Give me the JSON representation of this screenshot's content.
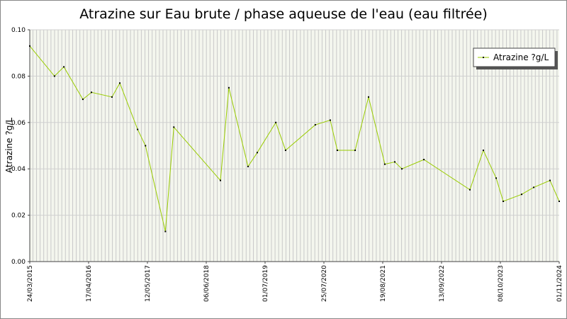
{
  "chart_data": {
    "type": "line",
    "title": "Atrazine sur Eau brute / phase aqueuse de l'eau (eau filtrée)",
    "y_label": "Atrazine ?g/L",
    "x": [
      "2015-03-24",
      "2015-09-04",
      "2015-11-05",
      "2016-03-10",
      "2016-05-06",
      "2016-09-19",
      "2016-11-10",
      "2017-03-08",
      "2017-04-29",
      "2017-09-08",
      "2017-11-03",
      "2018-09-08",
      "2018-11-03",
      "2019-03-10",
      "2019-05-10",
      "2019-09-10",
      "2019-11-14",
      "2020-05-29",
      "2020-09-05",
      "2020-10-22",
      "2021-02-17",
      "2021-05-17",
      "2021-09-02",
      "2021-11-07",
      "2021-12-24",
      "2022-05-19",
      "2023-03-20",
      "2023-06-17",
      "2023-09-10",
      "2023-10-27",
      "2024-02-26",
      "2024-05-16",
      "2024-09-01",
      "2024-11-01"
    ],
    "series": [
      {
        "name": "Atrazine ?g/L",
        "color": "#99cc00",
        "values": [
          0.093,
          0.08,
          0.084,
          0.07,
          0.073,
          0.071,
          0.077,
          0.057,
          0.05,
          0.013,
          0.058,
          0.035,
          0.075,
          0.041,
          0.047,
          0.06,
          0.048,
          0.059,
          0.061,
          0.048,
          0.048,
          0.071,
          0.042,
          0.043,
          0.04,
          0.044,
          0.031,
          0.048,
          0.036,
          0.026,
          0.029,
          0.032,
          0.035,
          0.026
        ]
      }
    ],
    "xlim": [
      "2015-03-24",
      "2024-11-01"
    ],
    "xticks": [
      {
        "value": "2015-03-24",
        "label": "24/03/2015"
      },
      {
        "value": "2016-04-17",
        "label": "17/04/2016"
      },
      {
        "value": "2017-05-12",
        "label": "12/05/2017"
      },
      {
        "value": "2018-06-06",
        "label": "06/06/2018"
      },
      {
        "value": "2019-07-01",
        "label": "01/07/2019"
      },
      {
        "value": "2020-07-25",
        "label": "25/07/2020"
      },
      {
        "value": "2021-08-19",
        "label": "19/08/2021"
      },
      {
        "value": "2022-09-13",
        "label": "13/09/2022"
      },
      {
        "value": "2023-10-08",
        "label": "08/10/2023"
      },
      {
        "value": "2024-11-01",
        "label": "01/11/2024"
      }
    ],
    "ylim": [
      0,
      0.1
    ],
    "yticks": [
      {
        "value": 0,
        "label": "0.00"
      },
      {
        "value": 0.02,
        "label": "0.02"
      },
      {
        "value": 0.04,
        "label": "0.04"
      },
      {
        "value": 0.06,
        "label": "0.06"
      },
      {
        "value": 0.08,
        "label": "0.08"
      },
      {
        "value": 0.1,
        "label": "0.10"
      }
    ],
    "grid": true,
    "legend": "top-right"
  }
}
